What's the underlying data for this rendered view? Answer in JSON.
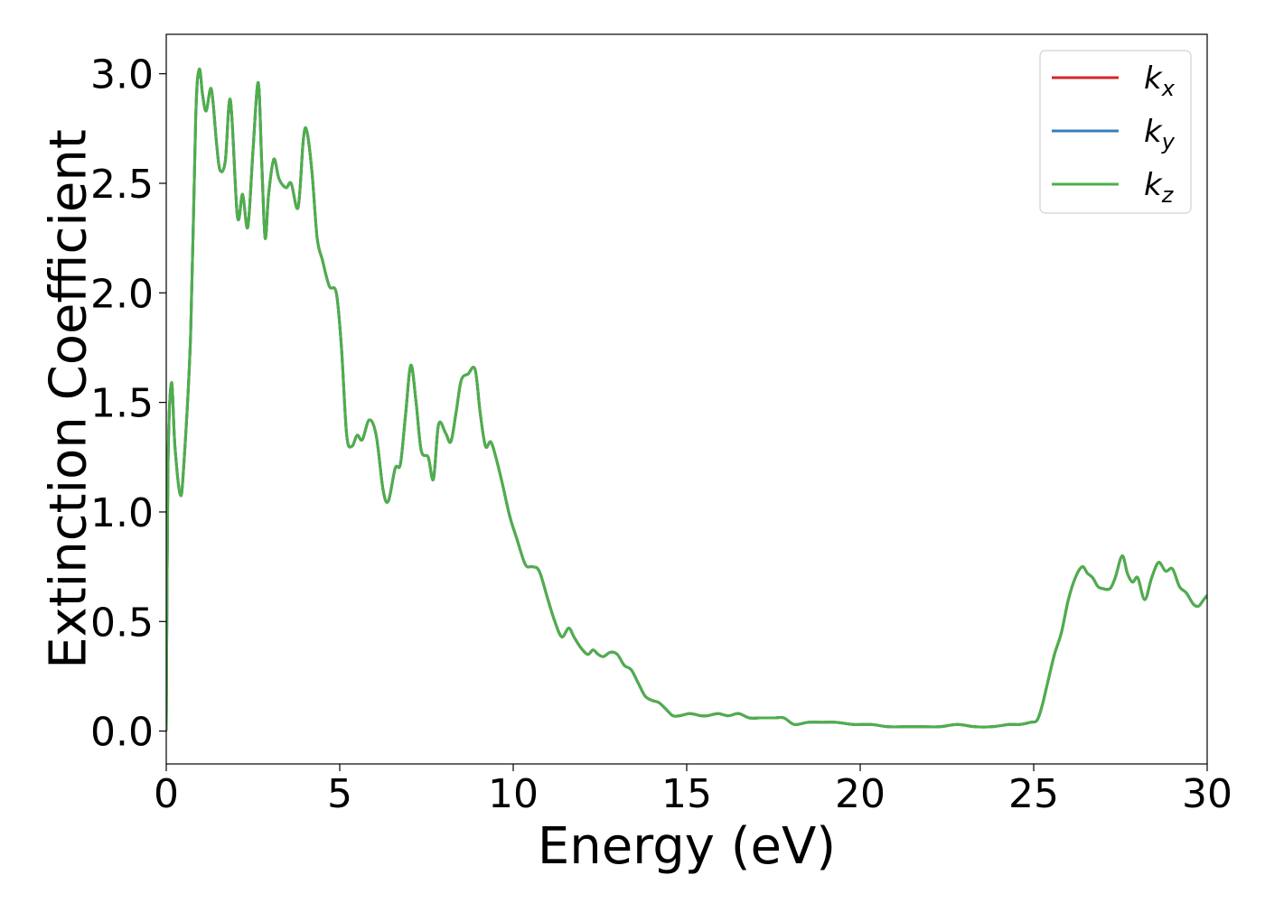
{
  "chart_data": {
    "type": "line",
    "title": "",
    "xlabel": "Energy (eV)",
    "ylabel": "Extinction Coefficient",
    "xlim": [
      0,
      30
    ],
    "ylim": [
      -0.15,
      3.18
    ],
    "xticks": [
      0,
      5,
      10,
      15,
      20,
      25,
      30
    ],
    "xtick_labels": [
      "0",
      "5",
      "10",
      "15",
      "20",
      "25",
      "30"
    ],
    "yticks": [
      0.0,
      0.5,
      1.0,
      1.5,
      2.0,
      2.5,
      3.0
    ],
    "ytick_labels": [
      "0.0",
      "0.5",
      "1.0",
      "1.5",
      "2.0",
      "2.5",
      "3.0"
    ],
    "grid": false,
    "legend_position": "top-right",
    "x": [
      0.0,
      0.05,
      0.15,
      0.25,
      0.4,
      0.5,
      0.7,
      0.85,
      0.95,
      1.05,
      1.15,
      1.3,
      1.45,
      1.55,
      1.7,
      1.85,
      2.05,
      2.2,
      2.35,
      2.5,
      2.65,
      2.75,
      2.85,
      2.95,
      3.1,
      3.25,
      3.45,
      3.6,
      3.8,
      3.95,
      4.05,
      4.2,
      4.35,
      4.5,
      4.7,
      4.9,
      5.05,
      5.2,
      5.35,
      5.5,
      5.65,
      5.85,
      6.05,
      6.25,
      6.4,
      6.6,
      6.75,
      6.9,
      7.05,
      7.2,
      7.35,
      7.55,
      7.7,
      7.85,
      8.05,
      8.2,
      8.35,
      8.5,
      8.7,
      8.9,
      9.05,
      9.2,
      9.35,
      9.5,
      9.7,
      9.9,
      10.1,
      10.35,
      10.55,
      10.75,
      11.0,
      11.2,
      11.4,
      11.6,
      11.75,
      11.95,
      12.15,
      12.3,
      12.45,
      12.6,
      12.8,
      13.0,
      13.2,
      13.4,
      13.6,
      13.8,
      14.0,
      14.2,
      14.4,
      14.6,
      14.8,
      15.1,
      15.4,
      15.6,
      15.9,
      16.2,
      16.5,
      16.8,
      17.1,
      17.5,
      17.8,
      18.1,
      18.5,
      18.9,
      19.3,
      19.8,
      20.3,
      20.8,
      21.3,
      21.8,
      22.3,
      22.8,
      23.3,
      23.8,
      24.3,
      24.6,
      24.9,
      25.1,
      25.25,
      25.4,
      25.6,
      25.8,
      26.0,
      26.2,
      26.4,
      26.55,
      26.7,
      26.85,
      27.0,
      27.2,
      27.35,
      27.55,
      27.7,
      27.85,
      28.0,
      28.2,
      28.4,
      28.6,
      28.8,
      29.0,
      29.2,
      29.4,
      29.6,
      29.75,
      29.9,
      30.0
    ],
    "series": [
      {
        "name": "k_x",
        "color": "#d62728",
        "values": [
          0.0,
          1.2,
          1.59,
          1.3,
          1.08,
          1.2,
          1.8,
          2.8,
          3.02,
          2.9,
          2.83,
          2.93,
          2.68,
          2.56,
          2.6,
          2.88,
          2.35,
          2.45,
          2.3,
          2.65,
          2.96,
          2.6,
          2.25,
          2.45,
          2.61,
          2.52,
          2.48,
          2.5,
          2.39,
          2.7,
          2.74,
          2.55,
          2.25,
          2.15,
          2.03,
          2.0,
          1.75,
          1.35,
          1.3,
          1.35,
          1.33,
          1.42,
          1.35,
          1.1,
          1.05,
          1.2,
          1.22,
          1.45,
          1.67,
          1.5,
          1.28,
          1.25,
          1.15,
          1.4,
          1.36,
          1.32,
          1.45,
          1.6,
          1.63,
          1.65,
          1.45,
          1.3,
          1.32,
          1.25,
          1.12,
          0.98,
          0.88,
          0.76,
          0.75,
          0.73,
          0.6,
          0.5,
          0.43,
          0.47,
          0.43,
          0.38,
          0.35,
          0.37,
          0.35,
          0.34,
          0.36,
          0.35,
          0.3,
          0.28,
          0.22,
          0.16,
          0.14,
          0.13,
          0.1,
          0.07,
          0.07,
          0.08,
          0.07,
          0.07,
          0.08,
          0.07,
          0.08,
          0.06,
          0.06,
          0.06,
          0.06,
          0.03,
          0.04,
          0.04,
          0.04,
          0.03,
          0.03,
          0.02,
          0.02,
          0.02,
          0.02,
          0.03,
          0.02,
          0.02,
          0.03,
          0.03,
          0.04,
          0.05,
          0.12,
          0.22,
          0.35,
          0.45,
          0.6,
          0.7,
          0.75,
          0.72,
          0.7,
          0.66,
          0.65,
          0.65,
          0.7,
          0.8,
          0.72,
          0.68,
          0.7,
          0.6,
          0.7,
          0.77,
          0.73,
          0.74,
          0.66,
          0.63,
          0.58,
          0.57,
          0.6,
          0.62
        ]
      },
      {
        "name": "k_y",
        "color": "#377eb8",
        "values": [
          0.0,
          1.2,
          1.59,
          1.3,
          1.08,
          1.2,
          1.8,
          2.8,
          3.02,
          2.9,
          2.83,
          2.93,
          2.68,
          2.56,
          2.6,
          2.88,
          2.35,
          2.45,
          2.3,
          2.65,
          2.96,
          2.6,
          2.25,
          2.45,
          2.61,
          2.52,
          2.48,
          2.5,
          2.39,
          2.7,
          2.74,
          2.55,
          2.25,
          2.15,
          2.03,
          2.0,
          1.75,
          1.35,
          1.3,
          1.35,
          1.33,
          1.42,
          1.35,
          1.1,
          1.05,
          1.2,
          1.22,
          1.45,
          1.67,
          1.5,
          1.28,
          1.25,
          1.15,
          1.4,
          1.36,
          1.32,
          1.45,
          1.6,
          1.63,
          1.65,
          1.45,
          1.3,
          1.32,
          1.25,
          1.12,
          0.98,
          0.88,
          0.76,
          0.75,
          0.73,
          0.6,
          0.5,
          0.43,
          0.47,
          0.43,
          0.38,
          0.35,
          0.37,
          0.35,
          0.34,
          0.36,
          0.35,
          0.3,
          0.28,
          0.22,
          0.16,
          0.14,
          0.13,
          0.1,
          0.07,
          0.07,
          0.08,
          0.07,
          0.07,
          0.08,
          0.07,
          0.08,
          0.06,
          0.06,
          0.06,
          0.06,
          0.03,
          0.04,
          0.04,
          0.04,
          0.03,
          0.03,
          0.02,
          0.02,
          0.02,
          0.02,
          0.03,
          0.02,
          0.02,
          0.03,
          0.03,
          0.04,
          0.05,
          0.12,
          0.22,
          0.35,
          0.45,
          0.6,
          0.7,
          0.75,
          0.72,
          0.7,
          0.66,
          0.65,
          0.65,
          0.7,
          0.8,
          0.72,
          0.68,
          0.7,
          0.6,
          0.7,
          0.77,
          0.73,
          0.74,
          0.66,
          0.63,
          0.58,
          0.57,
          0.6,
          0.62
        ]
      },
      {
        "name": "k_z",
        "color": "#4daf4a",
        "values": [
          0.0,
          1.2,
          1.59,
          1.3,
          1.08,
          1.2,
          1.8,
          2.8,
          3.02,
          2.9,
          2.83,
          2.93,
          2.68,
          2.56,
          2.6,
          2.88,
          2.35,
          2.45,
          2.3,
          2.65,
          2.96,
          2.6,
          2.25,
          2.45,
          2.61,
          2.52,
          2.48,
          2.5,
          2.39,
          2.7,
          2.74,
          2.55,
          2.25,
          2.15,
          2.03,
          2.0,
          1.75,
          1.35,
          1.3,
          1.35,
          1.33,
          1.42,
          1.35,
          1.1,
          1.05,
          1.2,
          1.22,
          1.45,
          1.67,
          1.5,
          1.28,
          1.25,
          1.15,
          1.4,
          1.36,
          1.32,
          1.45,
          1.6,
          1.63,
          1.65,
          1.45,
          1.3,
          1.32,
          1.25,
          1.12,
          0.98,
          0.88,
          0.76,
          0.75,
          0.73,
          0.6,
          0.5,
          0.43,
          0.47,
          0.43,
          0.38,
          0.35,
          0.37,
          0.35,
          0.34,
          0.36,
          0.35,
          0.3,
          0.28,
          0.22,
          0.16,
          0.14,
          0.13,
          0.1,
          0.07,
          0.07,
          0.08,
          0.07,
          0.07,
          0.08,
          0.07,
          0.08,
          0.06,
          0.06,
          0.06,
          0.06,
          0.03,
          0.04,
          0.04,
          0.04,
          0.03,
          0.03,
          0.02,
          0.02,
          0.02,
          0.02,
          0.03,
          0.02,
          0.02,
          0.03,
          0.03,
          0.04,
          0.05,
          0.12,
          0.22,
          0.35,
          0.45,
          0.6,
          0.7,
          0.75,
          0.72,
          0.7,
          0.66,
          0.65,
          0.65,
          0.7,
          0.8,
          0.72,
          0.68,
          0.7,
          0.6,
          0.7,
          0.77,
          0.73,
          0.74,
          0.66,
          0.63,
          0.58,
          0.57,
          0.6,
          0.62
        ]
      }
    ],
    "legend": [
      {
        "base": "k",
        "sub": "x",
        "color": "#d62728"
      },
      {
        "base": "k",
        "sub": "y",
        "color": "#377eb8"
      },
      {
        "base": "k",
        "sub": "z",
        "color": "#4daf4a"
      }
    ]
  }
}
